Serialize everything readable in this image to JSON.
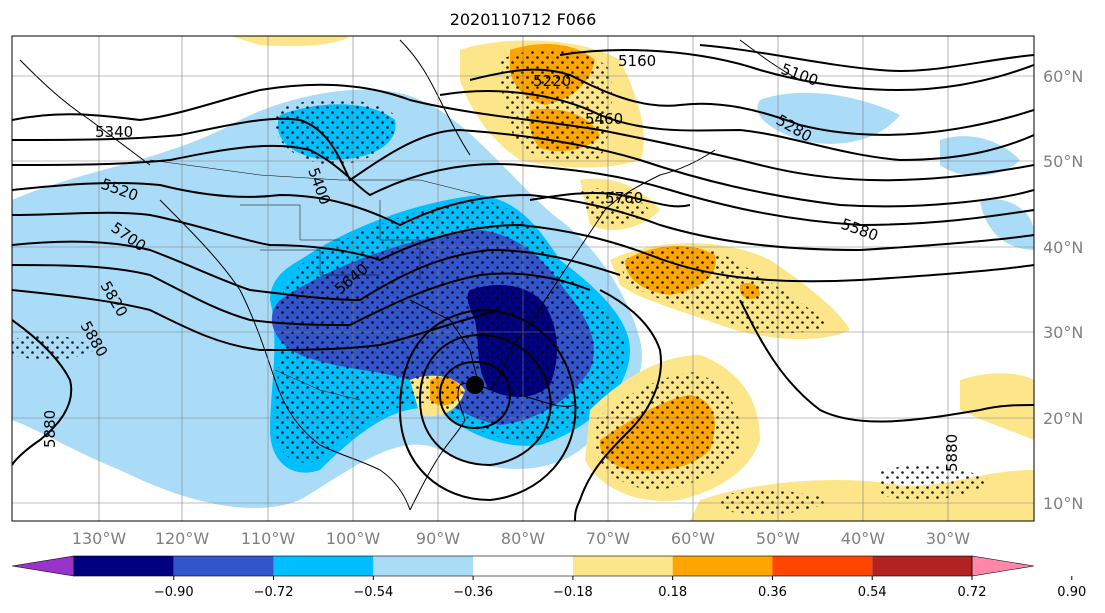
{
  "title": "2020110712 F066",
  "map": {
    "lon_labels": [
      "130°W",
      "120°W",
      "110°W",
      "100°W",
      "90°W",
      "80°W",
      "70°W",
      "60°W",
      "50°W",
      "40°W",
      "30°W"
    ],
    "lat_labels": [
      "60°N",
      "50°N",
      "40°N",
      "30°N",
      "20°N",
      "10°N"
    ],
    "contour_labels": [
      "5100",
      "5160",
      "5220",
      "5280",
      "5340",
      "5400",
      "5460",
      "5520",
      "5580",
      "5640",
      "5700",
      "5760",
      "5820",
      "5880",
      "5880",
      "5880"
    ],
    "storm_marker": "storm-center",
    "shading": "correlation anomaly with stippling for significance"
  },
  "colorbar": {
    "ticks": [
      "−0.90",
      "−0.72",
      "−0.54",
      "−0.36",
      "−0.18",
      "0.18",
      "0.36",
      "0.54",
      "0.72",
      "0.90"
    ],
    "colors": [
      "#9933cc",
      "#000080",
      "#3355cc",
      "#00bfff",
      "#aadcf8",
      "#ffffff",
      "#fde68a",
      "#ffa500",
      "#ff4500",
      "#b22222",
      "#ff88aa"
    ]
  }
}
